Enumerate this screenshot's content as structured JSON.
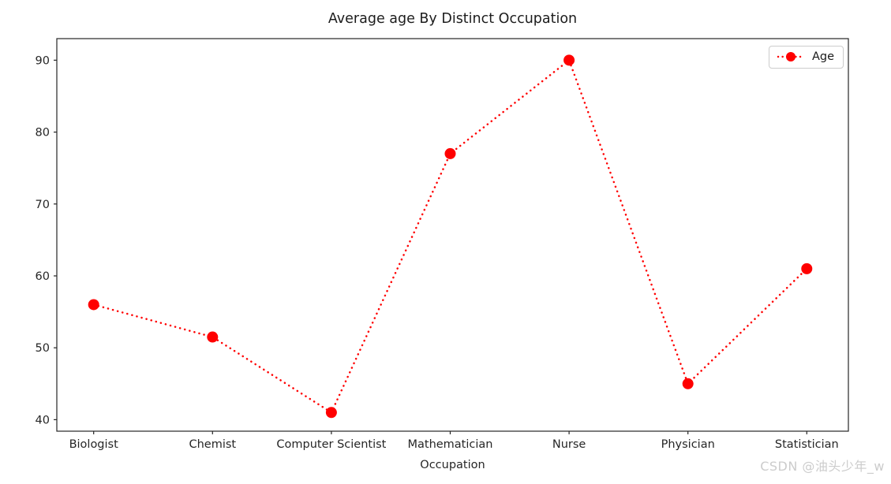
{
  "figure": {
    "watermark": "CSDN @油头少年_w"
  },
  "colors": {
    "series": "#ff0000",
    "axis": "#262626",
    "text": "#262626",
    "watermark": "#cccccc",
    "legend_border": "#cccccc"
  },
  "chart_data": {
    "type": "line",
    "title": "Average age By Distinct Occupation",
    "categories": [
      "Biologist",
      "Chemist",
      "Computer Scientist",
      "Mathematician",
      "Nurse",
      "Physician",
      "Statistician"
    ],
    "series": [
      {
        "name": "Age",
        "color": "#ff0000",
        "values": [
          56,
          51.5,
          41,
          77,
          90,
          45,
          61
        ]
      }
    ],
    "xlabel": "Occupation",
    "ylabel": "",
    "yticks": [
      40,
      50,
      60,
      70,
      80,
      90
    ],
    "ylim": [
      38.4,
      93.0
    ],
    "line_style": "dotted",
    "marker": "circle",
    "grid": false,
    "legend_position": "upper right"
  }
}
